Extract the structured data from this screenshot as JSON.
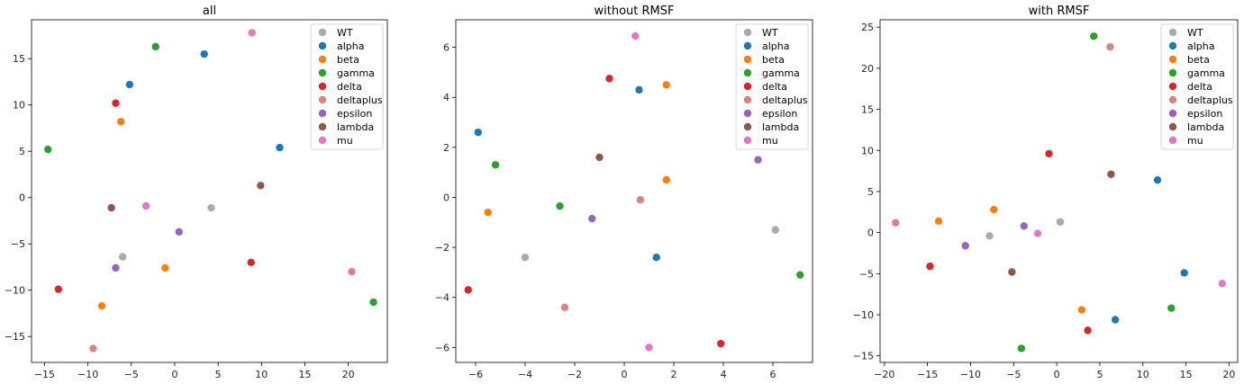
{
  "chart_data": [
    {
      "type": "scatter",
      "title": "all",
      "xlim": [
        -16.5,
        24.5
      ],
      "ylim": [
        -17.8,
        19.2
      ],
      "xticks": [
        -15,
        -10,
        -5,
        0,
        5,
        10,
        15,
        20
      ],
      "yticks": [
        -15,
        -10,
        -5,
        0,
        5,
        10,
        15
      ],
      "legend": "top-right",
      "series": [
        {
          "name": "WT",
          "color": "#aaaaaa",
          "points": [
            [
              -6,
              -6.4
            ],
            [
              4.2,
              -1.1
            ]
          ]
        },
        {
          "name": "alpha",
          "color": "#1f77b4",
          "points": [
            [
              -5.2,
              12.2
            ],
            [
              3.4,
              15.5
            ],
            [
              12.1,
              5.4
            ]
          ]
        },
        {
          "name": "beta",
          "color": "#ff7f0e",
          "points": [
            [
              -6.2,
              8.2
            ],
            [
              -8.4,
              -11.7
            ],
            [
              -1.1,
              -7.6
            ]
          ]
        },
        {
          "name": "gamma",
          "color": "#2ca02c",
          "points": [
            [
              -2.2,
              16.3
            ],
            [
              -14.6,
              5.2
            ],
            [
              22.9,
              -11.3
            ]
          ]
        },
        {
          "name": "delta",
          "color": "#d62728",
          "points": [
            [
              -6.8,
              10.2
            ],
            [
              -13.4,
              -9.9
            ],
            [
              8.8,
              -7.0
            ]
          ]
        },
        {
          "name": "deltaplus",
          "color": "#d98383",
          "points": [
            [
              20.4,
              -8.0
            ],
            [
              -9.4,
              -16.3
            ]
          ]
        },
        {
          "name": "epsilon",
          "color": "#9467bd",
          "points": [
            [
              0.5,
              -3.7
            ],
            [
              -6.8,
              -7.6
            ]
          ]
        },
        {
          "name": "lambda",
          "color": "#8c564b",
          "points": [
            [
              -7.3,
              -1.1
            ],
            [
              9.9,
              1.3
            ]
          ]
        },
        {
          "name": "mu",
          "color": "#e377c2",
          "points": [
            [
              -3.3,
              -0.9
            ],
            [
              8.9,
              17.8
            ]
          ]
        }
      ]
    },
    {
      "type": "scatter",
      "title": "without RMSF",
      "xlim": [
        -6.8,
        7.6
      ],
      "ylim": [
        -6.6,
        7.1
      ],
      "xticks": [
        -6,
        -4,
        -2,
        0,
        2,
        4,
        6
      ],
      "yticks": [
        -6,
        -4,
        -2,
        0,
        2,
        4,
        6
      ],
      "legend": "top-right",
      "series": [
        {
          "name": "WT",
          "color": "#aaaaaa",
          "points": [
            [
              -4.0,
              -2.4
            ],
            [
              6.1,
              -1.3
            ]
          ]
        },
        {
          "name": "alpha",
          "color": "#1f77b4",
          "points": [
            [
              -5.9,
              2.6
            ],
            [
              0.6,
              4.3
            ],
            [
              1.3,
              -2.4
            ]
          ]
        },
        {
          "name": "beta",
          "color": "#ff7f0e",
          "points": [
            [
              1.7,
              4.5
            ],
            [
              -5.5,
              -0.6
            ],
            [
              1.7,
              0.7
            ]
          ]
        },
        {
          "name": "gamma",
          "color": "#2ca02c",
          "points": [
            [
              -5.2,
              1.3
            ],
            [
              -2.6,
              -0.35
            ],
            [
              7.1,
              -3.1
            ]
          ]
        },
        {
          "name": "delta",
          "color": "#d62728",
          "points": [
            [
              -0.6,
              4.75
            ],
            [
              -6.3,
              -3.7
            ],
            [
              3.9,
              -5.85
            ]
          ]
        },
        {
          "name": "deltaplus",
          "color": "#d98383",
          "points": [
            [
              0.65,
              -0.1
            ],
            [
              -2.4,
              -4.4
            ]
          ]
        },
        {
          "name": "epsilon",
          "color": "#9467bd",
          "points": [
            [
              -1.3,
              -0.85
            ],
            [
              5.4,
              1.5
            ]
          ]
        },
        {
          "name": "lambda",
          "color": "#8c564b",
          "points": [
            [
              -1.0,
              1.6
            ]
          ]
        },
        {
          "name": "mu",
          "color": "#e377c2",
          "points": [
            [
              0.45,
              6.45
            ],
            [
              1.0,
              -6.0
            ]
          ]
        }
      ]
    },
    {
      "type": "scatter",
      "title": "with RMSF",
      "xlim": [
        -20.5,
        21.0
      ],
      "ylim": [
        -15.8,
        25.9
      ],
      "xticks": [
        -20,
        -15,
        -10,
        -5,
        0,
        5,
        10,
        15,
        20
      ],
      "yticks": [
        -15,
        -10,
        -5,
        0,
        5,
        10,
        15,
        20,
        25
      ],
      "legend": "top-right",
      "series": [
        {
          "name": "WT",
          "color": "#aaaaaa",
          "points": [
            [
              -7.8,
              -0.4
            ],
            [
              0.4,
              1.3
            ]
          ]
        },
        {
          "name": "alpha",
          "color": "#1f77b4",
          "points": [
            [
              11.7,
              6.4
            ],
            [
              14.8,
              -4.9
            ],
            [
              6.8,
              -10.6
            ]
          ]
        },
        {
          "name": "beta",
          "color": "#ff7f0e",
          "points": [
            [
              -13.7,
              1.4
            ],
            [
              -7.3,
              2.8
            ],
            [
              2.9,
              -9.4
            ]
          ]
        },
        {
          "name": "gamma",
          "color": "#2ca02c",
          "points": [
            [
              4.3,
              23.9
            ],
            [
              13.3,
              -9.2
            ],
            [
              -4.1,
              -14.1
            ]
          ]
        },
        {
          "name": "delta",
          "color": "#d62728",
          "points": [
            [
              -0.9,
              9.6
            ],
            [
              -14.7,
              -4.1
            ],
            [
              3.6,
              -11.9
            ]
          ]
        },
        {
          "name": "deltaplus",
          "color": "#d98383",
          "points": [
            [
              6.2,
              22.6
            ],
            [
              -18.7,
              1.2
            ]
          ]
        },
        {
          "name": "epsilon",
          "color": "#9467bd",
          "points": [
            [
              -3.8,
              0.8
            ],
            [
              -10.6,
              -1.6
            ]
          ]
        },
        {
          "name": "lambda",
          "color": "#8c564b",
          "points": [
            [
              6.3,
              7.1
            ],
            [
              -5.2,
              -4.8
            ]
          ]
        },
        {
          "name": "mu",
          "color": "#e377c2",
          "points": [
            [
              -2.2,
              -0.1
            ],
            [
              19.2,
              -6.2
            ]
          ]
        }
      ]
    }
  ]
}
